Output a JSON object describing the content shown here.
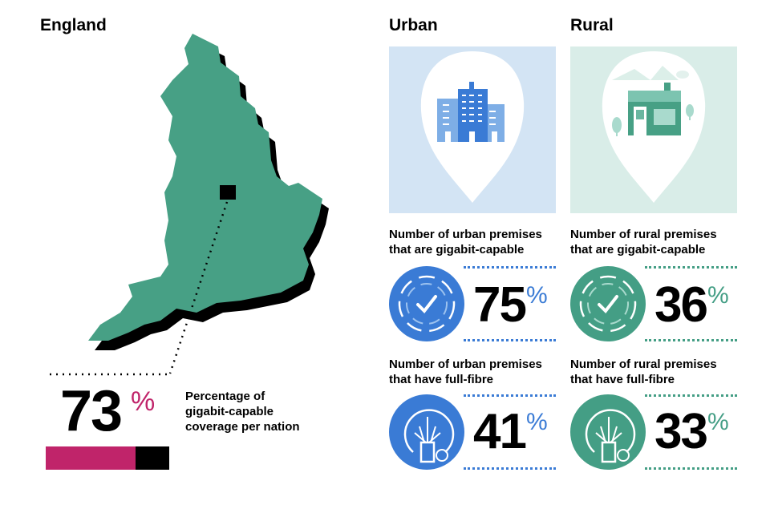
{
  "england": {
    "title": "England",
    "value": "73",
    "unit": "%",
    "caption_lines": [
      "Percentage of",
      "gigabit-capable",
      "coverage per nation"
    ],
    "coverage_fraction": 0.73,
    "accent": "#c0246a",
    "map_color": "#47a085"
  },
  "urban": {
    "title": "Urban",
    "accent": "#3a7bd5",
    "tile_bg": "#d3e4f4",
    "gigabit": {
      "caption_lines": [
        "Number of urban premises",
        "that are gigabit-capable"
      ],
      "value": "75",
      "unit": "%",
      "icon": "check-circle-icon"
    },
    "fibre": {
      "caption_lines": [
        "Number of urban premises",
        "that have full-fibre"
      ],
      "value": "41",
      "unit": "%",
      "icon": "fibre-cable-icon"
    },
    "illustration": "city-buildings-icon"
  },
  "rural": {
    "title": "Rural",
    "accent": "#449e85",
    "tile_bg": "#d9ede8",
    "gigabit": {
      "caption_lines": [
        "Number of rural premises",
        "that are gigabit-capable"
      ],
      "value": "36",
      "unit": "%",
      "icon": "check-circle-icon"
    },
    "fibre": {
      "caption_lines": [
        "Number of rural premises",
        "that have full-fibre"
      ],
      "value": "33",
      "unit": "%",
      "icon": "fibre-cable-icon"
    },
    "illustration": "rural-shop-icon"
  }
}
